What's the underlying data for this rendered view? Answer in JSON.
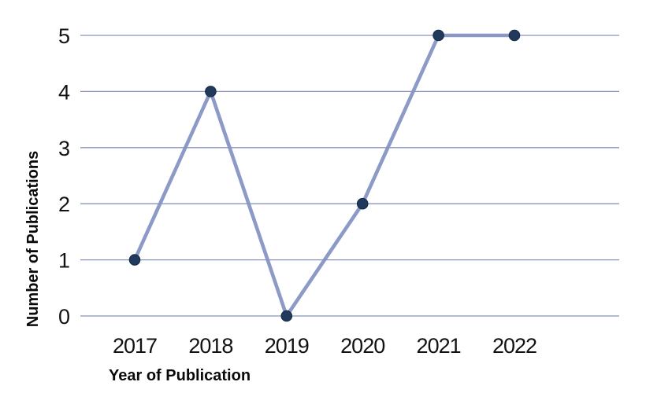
{
  "chart_data": {
    "type": "line",
    "title": "",
    "xlabel": "Year of Publication",
    "ylabel": "Number of Publications",
    "categories": [
      "2017",
      "2018",
      "2019",
      "2020",
      "2021",
      "2022"
    ],
    "series": [
      {
        "name": "Number of Publications",
        "values": [
          1,
          4,
          0,
          2,
          5,
          5
        ]
      }
    ],
    "ylim": [
      0,
      5
    ],
    "yticks": [
      0,
      1,
      2,
      3,
      4,
      5
    ],
    "grid": "horizontal-only",
    "legend_position": "none",
    "colors": {
      "line": "#8b9ac6",
      "marker": "#20395c",
      "marker_edge": "#16293f",
      "gridline": "#8794bd",
      "text": "#111111",
      "background": "#ffffff"
    }
  }
}
